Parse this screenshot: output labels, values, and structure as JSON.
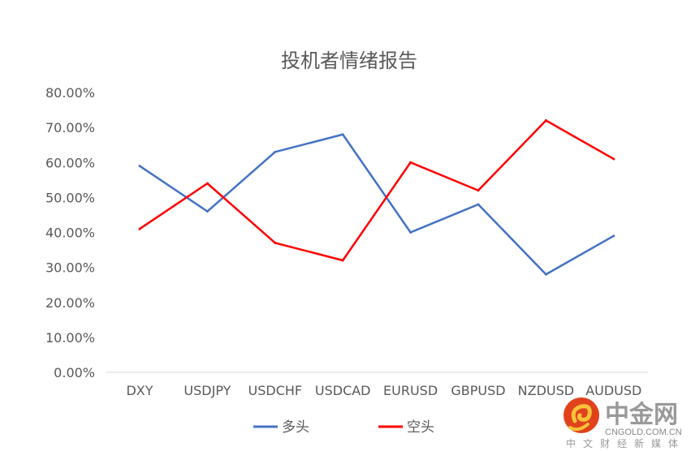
{
  "chart_data": {
    "type": "line",
    "title": "投机者情绪报告",
    "categories": [
      "DXY",
      "USDJPY",
      "USDCHF",
      "USDCAD",
      "EURUSD",
      "GBPUSD",
      "NZDUSD",
      "AUDUSD"
    ],
    "series": [
      {
        "name": "多头",
        "color": "#4472C4",
        "values": [
          59,
          46,
          63,
          68,
          40,
          48,
          28,
          39
        ]
      },
      {
        "name": "空头",
        "color": "#FF0000",
        "values": [
          41,
          54,
          37,
          32,
          60,
          52,
          72,
          61
        ]
      }
    ],
    "yticks": [
      "0.00%",
      "10.00%",
      "20.00%",
      "30.00%",
      "40.00%",
      "50.00%",
      "60.00%",
      "70.00%",
      "80.00%"
    ],
    "ylim": [
      0,
      80
    ],
    "xlabel": "",
    "ylabel": "",
    "grid": false,
    "legend": "bottom"
  },
  "watermark": {
    "name": "中金网",
    "domain": "CNGOLD.COM.CN",
    "tagline": "中文财经新媒体"
  }
}
